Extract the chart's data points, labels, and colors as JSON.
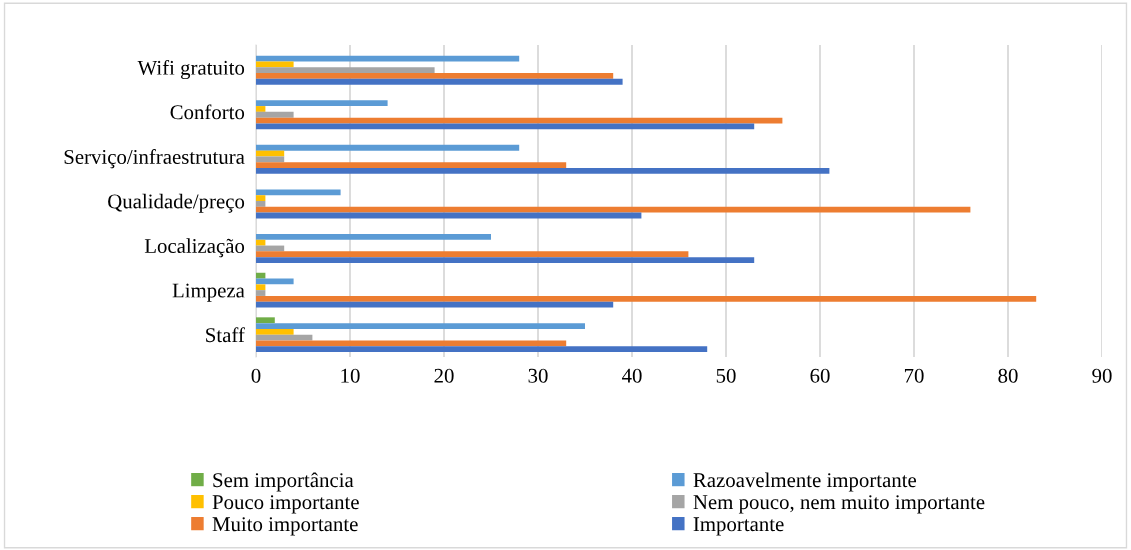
{
  "chart_data": {
    "type": "bar",
    "orientation": "horizontal",
    "categories": [
      "Wifi gratuito",
      "Conforto",
      "Serviço/infraestrutura",
      "Qualidade/preço",
      "Localização",
      "Limpeza",
      "Staff"
    ],
    "series": [
      {
        "name": "Sem importância",
        "color": "#70ad47",
        "values": [
          0,
          0,
          0,
          0,
          0,
          1,
          2
        ]
      },
      {
        "name": "Razoavelmente importante",
        "color": "#5b9bd5",
        "values": [
          28,
          14,
          28,
          9,
          25,
          4,
          35
        ]
      },
      {
        "name": "Pouco importante",
        "color": "#ffc000",
        "values": [
          4,
          1,
          3,
          1,
          1,
          1,
          4
        ]
      },
      {
        "name": "Nem pouco, nem muito importante",
        "color": "#a5a5a5",
        "values": [
          19,
          4,
          3,
          1,
          3,
          1,
          6
        ]
      },
      {
        "name": "Muito importante",
        "color": "#ed7d31",
        "values": [
          38,
          56,
          33,
          76,
          46,
          83,
          33
        ]
      },
      {
        "name": "Importante",
        "color": "#4472c4",
        "values": [
          39,
          53,
          61,
          41,
          53,
          38,
          48
        ]
      }
    ],
    "xlim": [
      0,
      90
    ],
    "xticks": [
      0,
      10,
      20,
      30,
      40,
      50,
      60,
      70,
      80,
      90
    ],
    "grid": "x",
    "legend": "bottom"
  }
}
